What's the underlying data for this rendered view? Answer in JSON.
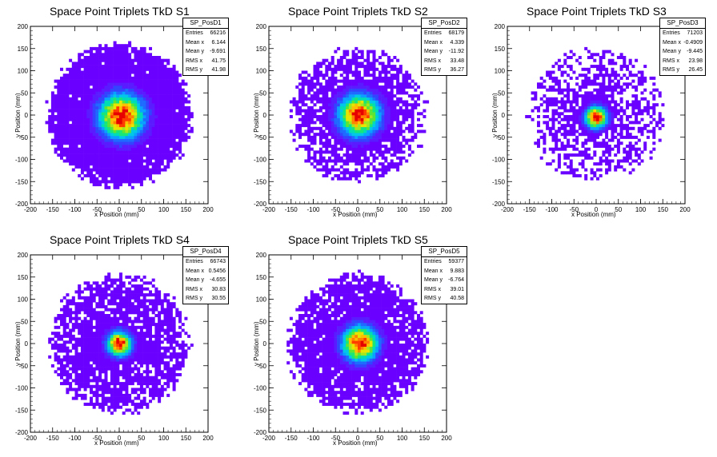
{
  "chart_data": [
    {
      "type": "heatmap",
      "title": "Space Point Triplets TkD S1",
      "xlabel": "x Position (mm)",
      "ylabel": "y Position (mm)",
      "xlim": [
        -200,
        200
      ],
      "ylim": [
        -200,
        200
      ],
      "xticks": [
        -200,
        -150,
        -100,
        -50,
        0,
        50,
        100,
        150,
        200
      ],
      "yticks": [
        -200,
        -150,
        -100,
        -50,
        0,
        50,
        100,
        150,
        200
      ],
      "stats": {
        "name": "SP_PosD1",
        "entries": "66216",
        "mean_x": "6.144",
        "mean_y": "-9.691",
        "rms_x": "41.75",
        "rms_y": "41.98"
      },
      "stat_labels": {
        "entries": "Entries",
        "mean_x": "Mean x",
        "mean_y": "Mean y",
        "rms_x": "RMS x",
        "rms_y": "RMS y"
      },
      "extent_radius": 160,
      "peak": [
        5,
        -2
      ],
      "sigma": 33,
      "sparseness": 0.02
    },
    {
      "type": "heatmap",
      "title": "Space Point Triplets TkD S2",
      "xlabel": "x Position (mm)",
      "ylabel": "y Position (mm)",
      "xlim": [
        -200,
        200
      ],
      "ylim": [
        -200,
        200
      ],
      "xticks": [
        -200,
        -150,
        -100,
        -50,
        0,
        50,
        100,
        150,
        200
      ],
      "yticks": [
        -200,
        -150,
        -100,
        -50,
        0,
        50,
        100,
        150,
        200
      ],
      "stats": {
        "name": "SP_PosD2",
        "entries": "68179",
        "mean_x": "4.339",
        "mean_y": "-11.92",
        "rms_x": "33.48",
        "rms_y": "36.27"
      },
      "stat_labels": {
        "entries": "Entries",
        "mean_x": "Mean x",
        "mean_y": "Mean y",
        "rms_x": "RMS x",
        "rms_y": "RMS y"
      },
      "extent_radius": 150,
      "peak": [
        3,
        0
      ],
      "sigma": 30,
      "sparseness": 0.18
    },
    {
      "type": "heatmap",
      "title": "Space Point Triplets TkD S3",
      "xlabel": "x Position (mm)",
      "ylabel": "y Position (mm)",
      "xlim": [
        -200,
        200
      ],
      "ylim": [
        -200,
        200
      ],
      "xticks": [
        -200,
        -150,
        -100,
        -50,
        0,
        50,
        100,
        150,
        200
      ],
      "yticks": [
        -200,
        -150,
        -100,
        -50,
        0,
        50,
        100,
        150,
        200
      ],
      "stats": {
        "name": "SP_PosD3",
        "entries": "71203",
        "mean_x": "-0.4909",
        "mean_y": "-9.445",
        "rms_x": "23.98",
        "rms_y": "26.45"
      },
      "stat_labels": {
        "entries": "Entries",
        "mean_x": "Mean x",
        "mean_y": "Mean y",
        "rms_x": "RMS x",
        "rms_y": "RMS y"
      },
      "extent_radius": 150,
      "peak": [
        0,
        -5
      ],
      "sigma": 16,
      "sparseness": 0.3
    },
    {
      "type": "heatmap",
      "title": "Space Point Triplets TkD S4",
      "xlabel": "x Position (mm)",
      "ylabel": "y Position (mm)",
      "xlim": [
        -200,
        200
      ],
      "ylim": [
        -200,
        200
      ],
      "xticks": [
        -200,
        -150,
        -100,
        -50,
        0,
        50,
        100,
        150,
        200
      ],
      "yticks": [
        -200,
        -150,
        -100,
        -50,
        0,
        50,
        100,
        150,
        200
      ],
      "stats": {
        "name": "SP_PosD4",
        "entries": "66743",
        "mean_x": "0.5456",
        "mean_y": "-4.655",
        "rms_x": "30.83",
        "rms_y": "30.55"
      },
      "stat_labels": {
        "entries": "Entries",
        "mean_x": "Mean x",
        "mean_y": "Mean y",
        "rms_x": "RMS x",
        "rms_y": "RMS y"
      },
      "extent_radius": 155,
      "peak": [
        0,
        0
      ],
      "sigma": 18,
      "sparseness": 0.12
    },
    {
      "type": "heatmap",
      "title": "Space Point Triplets TkD S5",
      "xlabel": "x Position (mm)",
      "ylabel": "y Position (mm)",
      "xlim": [
        -200,
        200
      ],
      "ylim": [
        -200,
        200
      ],
      "xticks": [
        -200,
        -150,
        -100,
        -50,
        0,
        50,
        100,
        150,
        200
      ],
      "yticks": [
        -200,
        -150,
        -100,
        -50,
        0,
        50,
        100,
        150,
        200
      ],
      "stats": {
        "name": "SP_PosD5",
        "entries": "59377",
        "mean_x": "9.883",
        "mean_y": "-6.764",
        "rms_x": "39.01",
        "rms_y": "40.58"
      },
      "stat_labels": {
        "entries": "Entries",
        "mean_x": "Mean x",
        "mean_y": "Mean y",
        "rms_x": "RMS x",
        "rms_y": "RMS y"
      },
      "extent_radius": 155,
      "peak": [
        5,
        0
      ],
      "sigma": 26,
      "sparseness": 0.1
    }
  ]
}
